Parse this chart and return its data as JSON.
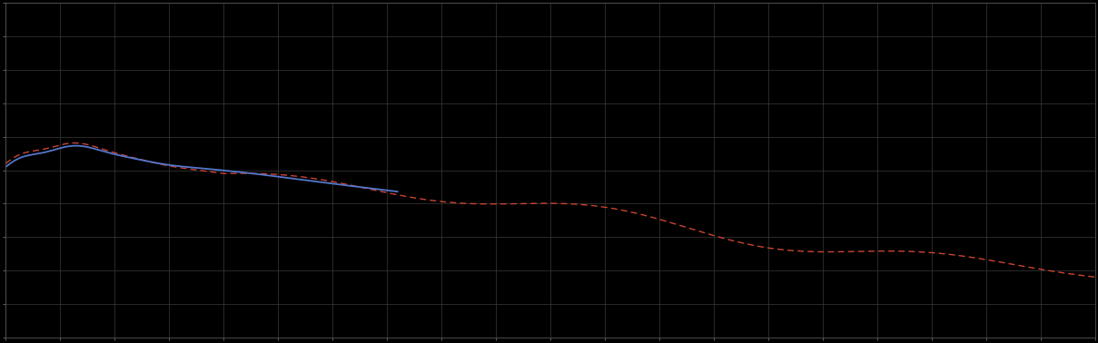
{
  "background_color": "#000000",
  "plot_bg_color": "#000000",
  "blue_line_color": "#5577cc",
  "red_line_color": "#cc4433",
  "figsize": [
    12.09,
    3.78
  ],
  "dpi": 100,
  "xlim": [
    0,
    100
  ],
  "ylim": [
    0,
    10
  ],
  "n_x_ticks": 20,
  "n_y_ticks": 10,
  "blue_x_max": 36
}
